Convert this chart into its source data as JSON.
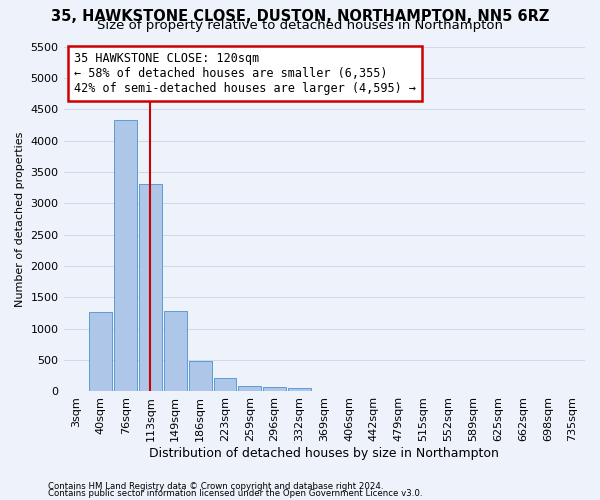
{
  "title1": "35, HAWKSTONE CLOSE, DUSTON, NORTHAMPTON, NN5 6RZ",
  "title2": "Size of property relative to detached houses in Northampton",
  "xlabel": "Distribution of detached houses by size in Northampton",
  "ylabel": "Number of detached properties",
  "footnote1": "Contains HM Land Registry data © Crown copyright and database right 2024.",
  "footnote2": "Contains public sector information licensed under the Open Government Licence v3.0.",
  "categories": [
    "3sqm",
    "40sqm",
    "76sqm",
    "113sqm",
    "149sqm",
    "186sqm",
    "223sqm",
    "259sqm",
    "296sqm",
    "332sqm",
    "369sqm",
    "406sqm",
    "442sqm",
    "479sqm",
    "515sqm",
    "552sqm",
    "589sqm",
    "625sqm",
    "662sqm",
    "698sqm",
    "735sqm"
  ],
  "values": [
    0,
    1270,
    4330,
    3300,
    1280,
    490,
    215,
    85,
    70,
    55,
    0,
    0,
    0,
    0,
    0,
    0,
    0,
    0,
    0,
    0,
    0
  ],
  "bar_color": "#aec6e8",
  "bar_edge_color": "#5b9bd5",
  "ylim": [
    0,
    5500
  ],
  "yticks": [
    0,
    500,
    1000,
    1500,
    2000,
    2500,
    3000,
    3500,
    4000,
    4500,
    5000,
    5500
  ],
  "property_line_x": 3.0,
  "annotation_text": "35 HAWKSTONE CLOSE: 120sqm\n← 58% of detached houses are smaller (6,355)\n42% of semi-detached houses are larger (4,595) →",
  "annotation_box_color": "#ffffff",
  "annotation_border_color": "#cc0000",
  "red_line_color": "#cc0000",
  "bg_color": "#eef3fb",
  "grid_color": "#d0d8ea",
  "title_fontsize": 10.5,
  "subtitle_fontsize": 9.5,
  "annotation_fontsize": 8.5
}
